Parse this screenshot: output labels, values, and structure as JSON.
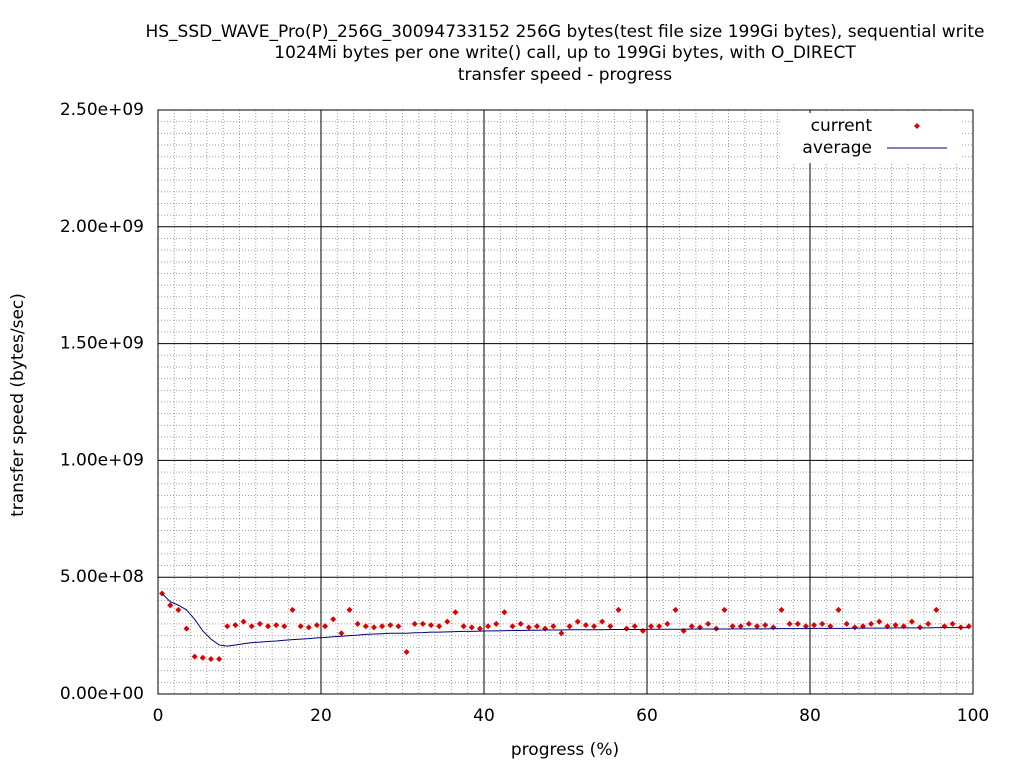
{
  "chart_data": {
    "type": "scatter",
    "title": [
      "HS_SSD_WAVE_Pro(P)_256G_30094733152 256G bytes(test file size 199Gi bytes), sequential write",
      "1024Mi bytes per one write() call, up to 199Gi bytes, with O_DIRECT",
      "transfer speed - progress"
    ],
    "xlabel": "progress (%)",
    "ylabel": "transfer speed (bytes/sec)",
    "xlim": [
      0,
      100
    ],
    "xticks": [
      0,
      20,
      40,
      60,
      80,
      100
    ],
    "ylim": [
      0,
      2500000000
    ],
    "yticks": [
      {
        "value": 0,
        "label": "0.00e+00"
      },
      {
        "value": 500000000,
        "label": "5.00e+08"
      },
      {
        "value": 1000000000,
        "label": "1.00e+09"
      },
      {
        "value": 1500000000,
        "label": "1.50e+09"
      },
      {
        "value": 2000000000,
        "label": "2.00e+09"
      },
      {
        "value": 2500000000,
        "label": "2.50e+09"
      }
    ],
    "grid": true,
    "minor_grid": true,
    "mxtics": 10,
    "mytics": 10,
    "legend": "upper right",
    "x": [
      0.5,
      1.5,
      2.5,
      3.5,
      4.5,
      5.5,
      6.5,
      7.5,
      8.5,
      9.5,
      10.5,
      11.5,
      12.5,
      13.5,
      14.5,
      15.5,
      16.5,
      17.5,
      18.5,
      19.5,
      20.5,
      21.5,
      22.5,
      23.5,
      24.5,
      25.5,
      26.5,
      27.5,
      28.5,
      29.5,
      30.5,
      31.5,
      32.5,
      33.5,
      34.5,
      35.5,
      36.5,
      37.5,
      38.5,
      39.5,
      40.5,
      41.5,
      42.5,
      43.5,
      44.5,
      45.5,
      46.5,
      47.5,
      48.5,
      49.5,
      50.5,
      51.5,
      52.5,
      53.5,
      54.5,
      55.5,
      56.5,
      57.5,
      58.5,
      59.5,
      60.5,
      61.5,
      62.5,
      63.5,
      64.5,
      65.5,
      66.5,
      67.5,
      68.5,
      69.5,
      70.5,
      71.5,
      72.5,
      73.5,
      74.5,
      75.5,
      76.5,
      77.5,
      78.5,
      79.5,
      80.5,
      81.5,
      82.5,
      83.5,
      84.5,
      85.5,
      86.5,
      87.5,
      88.5,
      89.5,
      90.5,
      91.5,
      92.5,
      93.5,
      94.5,
      95.5,
      96.5,
      97.5,
      98.5,
      99.5
    ],
    "series": [
      {
        "name": "current",
        "color": "#e00000",
        "style": "points",
        "values": [
          430000000.0,
          380000000.0,
          360000000.0,
          280000000.0,
          160000000.0,
          155000000.0,
          150000000.0,
          150000000.0,
          290000000.0,
          295000000.0,
          310000000.0,
          290000000.0,
          300000000.0,
          290000000.0,
          295000000.0,
          290000000.0,
          360000000.0,
          290000000.0,
          285000000.0,
          295000000.0,
          290000000.0,
          320000000.0,
          260000000.0,
          360000000.0,
          300000000.0,
          290000000.0,
          285000000.0,
          290000000.0,
          295000000.0,
          290000000.0,
          180000000.0,
          300000000.0,
          300000000.0,
          295000000.0,
          290000000.0,
          310000000.0,
          350000000.0,
          290000000.0,
          285000000.0,
          280000000.0,
          290000000.0,
          300000000.0,
          350000000.0,
          290000000.0,
          300000000.0,
          285000000.0,
          290000000.0,
          280000000.0,
          290000000.0,
          260000000.0,
          290000000.0,
          310000000.0,
          295000000.0,
          290000000.0,
          310000000.0,
          290000000.0,
          360000000.0,
          280000000.0,
          290000000.0,
          270000000.0,
          290000000.0,
          290000000.0,
          300000000.0,
          360000000.0,
          270000000.0,
          290000000.0,
          285000000.0,
          300000000.0,
          280000000.0,
          360000000.0,
          290000000.0,
          290000000.0,
          300000000.0,
          290000000.0,
          295000000.0,
          285000000.0,
          360000000.0,
          300000000.0,
          300000000.0,
          290000000.0,
          295000000.0,
          300000000.0,
          290000000.0,
          360000000.0,
          300000000.0,
          285000000.0,
          290000000.0,
          300000000.0,
          310000000.0,
          290000000.0,
          295000000.0,
          290000000.0,
          310000000.0,
          285000000.0,
          300000000.0,
          360000000.0,
          290000000.0,
          300000000.0,
          285000000.0,
          290000000.0
        ]
      },
      {
        "name": "average",
        "color": "#000080",
        "style": "line",
        "values": [
          430000000.0,
          395000000.0,
          380000000.0,
          360000000.0,
          320000000.0,
          270000000.0,
          235000000.0,
          210000000.0,
          205000000.0,
          210000000.0,
          215000000.0,
          220000000.0,
          222000000.0,
          225000000.0,
          227000000.0,
          230000000.0,
          233000000.0,
          235000000.0,
          237000000.0,
          240000000.0,
          242000000.0,
          245000000.0,
          247000000.0,
          250000000.0,
          252000000.0,
          255000000.0,
          257000000.0,
          258000000.0,
          260000000.0,
          260000000.0,
          260000000.0,
          262000000.0,
          263000000.0,
          265000000.0,
          265000000.0,
          266000000.0,
          267000000.0,
          268000000.0,
          268000000.0,
          269000000.0,
          270000000.0,
          270000000.0,
          271000000.0,
          272000000.0,
          272000000.0,
          273000000.0,
          273000000.0,
          274000000.0,
          274000000.0,
          274000000.0,
          275000000.0,
          275000000.0,
          275000000.0,
          275000000.0,
          275000000.0,
          276000000.0,
          276000000.0,
          276000000.0,
          276000000.0,
          276000000.0,
          277000000.0,
          277000000.0,
          277000000.0,
          277000000.0,
          277000000.0,
          278000000.0,
          278000000.0,
          278000000.0,
          278000000.0,
          278000000.0,
          279000000.0,
          279000000.0,
          279000000.0,
          279000000.0,
          279000000.0,
          280000000.0,
          280000000.0,
          280000000.0,
          280000000.0,
          280000000.0,
          281000000.0,
          281000000.0,
          281000000.0,
          281000000.0,
          281000000.0,
          282000000.0,
          282000000.0,
          282000000.0,
          282000000.0,
          282000000.0,
          283000000.0,
          283000000.0,
          283000000.0,
          283000000.0,
          283000000.0,
          284000000.0,
          284000000.0,
          284000000.0,
          284000000.0,
          284000000.0
        ]
      }
    ]
  }
}
